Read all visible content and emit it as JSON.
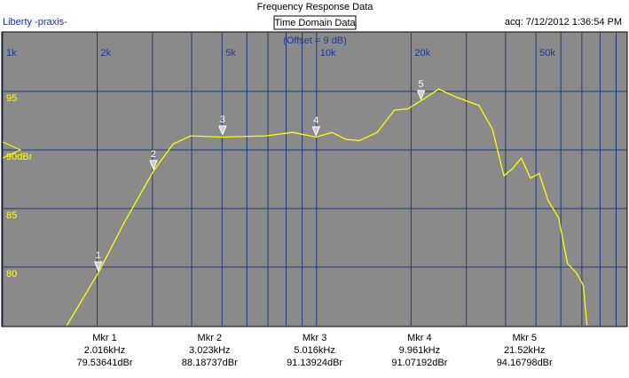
{
  "chart_data": {
    "type": "line",
    "title": "Frequency Response Data",
    "app_name": "Liberty -praxis-",
    "button": "Time Domain Data",
    "acquired": "acq: 7/12/2012 1:36:54 PM",
    "annotation": "(Offset = 9 dB)",
    "xscale": "log",
    "xlim": [
      1000,
      97000
    ],
    "ylim": [
      75,
      100
    ],
    "xticks": [
      {
        "value": 1000,
        "label": "1k"
      },
      {
        "value": 2000,
        "label": "2k"
      },
      {
        "value": 5000,
        "label": "5k"
      },
      {
        "value": 10000,
        "label": "10k"
      },
      {
        "value": 20000,
        "label": "20k"
      },
      {
        "value": 50000,
        "label": "50k"
      }
    ],
    "xgrid": [
      1000,
      2000,
      3000,
      4000,
      5000,
      6000,
      7000,
      8000,
      9000,
      10000,
      20000,
      30000,
      40000,
      50000,
      60000,
      70000,
      80000,
      90000
    ],
    "yticks": [
      80,
      85,
      {
        "value": 90,
        "label": "90dBr"
      },
      95
    ],
    "reference_level": 90,
    "grid": true,
    "background": "#8a8a8a",
    "grid_color": "#1c3a78",
    "series": [
      {
        "color": "#ffff00",
        "x": [
          1600,
          2016,
          2440,
          3023,
          3490,
          3970,
          5016,
          6900,
          8390,
          9961,
          11200,
          12400,
          13700,
          15600,
          17700,
          19500,
          21520,
          24500,
          27900,
          32900,
          36300,
          39500,
          42100,
          44900,
          48000,
          51200,
          54600,
          59000,
          63000,
          67300,
          70800,
          72700
        ],
        "values": [
          75,
          79.5,
          83.8,
          88.2,
          90.5,
          91.2,
          91.1,
          91.2,
          91.5,
          91.1,
          91.5,
          90.9,
          90.8,
          91.5,
          93.4,
          93.5,
          94.2,
          95.2,
          94.5,
          93.8,
          91.8,
          87.8,
          88.4,
          89.3,
          87.6,
          88.0,
          85.7,
          84.2,
          80.3,
          79.5,
          78.4,
          75
        ]
      }
    ],
    "markers": [
      {
        "tag": "1",
        "name": "Mkr 1",
        "x": 2016,
        "x_label": "2.016kHz",
        "value": 79.53641,
        "value_label": "79.53641dBr"
      },
      {
        "tag": "2",
        "name": "Mkr 2",
        "x": 3023,
        "x_label": "3.023kHz",
        "value": 88.18737,
        "value_label": "88.18737dBr"
      },
      {
        "tag": "3",
        "name": "Mkr 3",
        "x": 5016,
        "x_label": "5.016kHz",
        "value": 91.13924,
        "value_label": "91.13924dBr"
      },
      {
        "tag": "4",
        "name": "Mkr 4",
        "x": 9961,
        "x_label": "9.961kHz",
        "value": 91.07192,
        "value_label": "91.07192dBr"
      },
      {
        "tag": "5",
        "name": "Mkr 5",
        "x": 21520,
        "x_label": "21.52kHz",
        "value": 94.16798,
        "value_label": "94.16798dBr"
      }
    ]
  }
}
